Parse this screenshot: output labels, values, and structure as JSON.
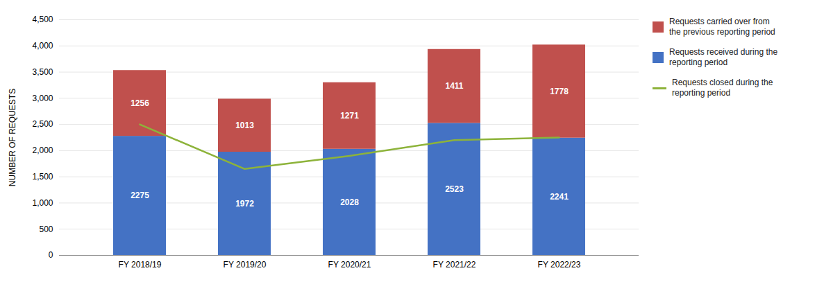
{
  "chart_data": {
    "type": "bar",
    "stacked": true,
    "data_labels": true,
    "grid": true,
    "legend": "right",
    "categories": [
      "FY 2018/19",
      "FY 2019/20",
      "FY 2020/21",
      "FY 2021/22",
      "FY 2022/23"
    ],
    "series": [
      {
        "name": "Requests received during the\nreporting period",
        "color": "#4472C4",
        "values": [
          2275,
          1972,
          2028,
          2523,
          2241
        ]
      },
      {
        "name": "Requests carried over from\nthe previous reporting period",
        "color": "#C0504D",
        "values": [
          1256,
          1013,
          1271,
          1411,
          1778
        ]
      },
      {
        "name": "Requests closed during the\nreporting period",
        "type": "line",
        "color": "#8DB33A",
        "values": [
          2500,
          1650,
          1900,
          2200,
          2250
        ]
      }
    ],
    "ylabel": "NUMBER OF REQUESTS",
    "ylim": [
      0,
      4500
    ],
    "yticks": [
      0,
      500,
      {
        "value": 1000,
        "label": "1,000"
      },
      {
        "value": 1500,
        "label": "1,500"
      },
      {
        "value": 2000,
        "label": "2,000"
      },
      {
        "value": 2500,
        "label": "2,500"
      },
      {
        "value": 3000,
        "label": "3,000"
      },
      {
        "value": 3500,
        "label": "3,500"
      },
      {
        "value": 4000,
        "label": "4,000"
      },
      {
        "value": 4500,
        "label": "4,500"
      }
    ]
  }
}
